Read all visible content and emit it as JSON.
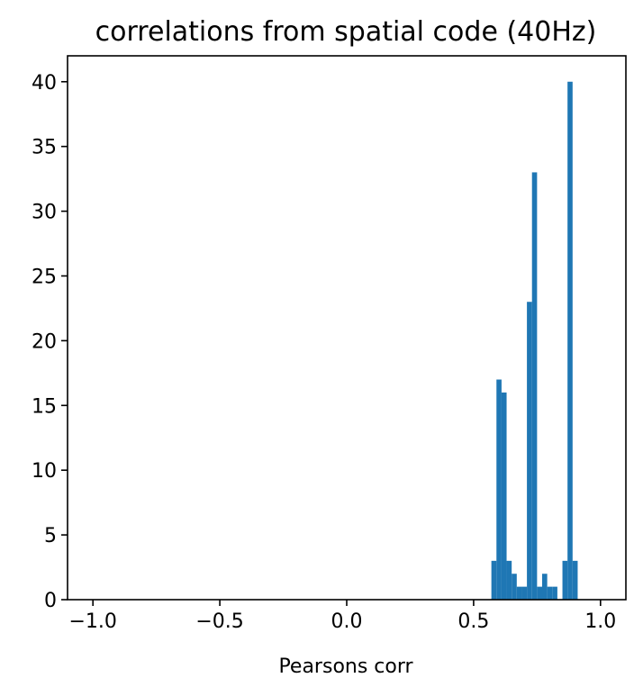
{
  "chart_data": {
    "type": "bar",
    "title": "correlations from spatial code (40Hz)",
    "xlabel": "Pearsons corr",
    "ylabel": "",
    "xlim": [
      -1.1,
      1.1
    ],
    "ylim": [
      0,
      42
    ],
    "xticks": [
      -1.0,
      -0.5,
      0.0,
      0.5,
      1.0
    ],
    "xtick_labels": [
      "−1.0",
      "−0.5",
      "0.0",
      "0.5",
      "1.0"
    ],
    "yticks": [
      0,
      5,
      10,
      15,
      20,
      25,
      30,
      35,
      40
    ],
    "ytick_labels": [
      "0",
      "5",
      "10",
      "15",
      "20",
      "25",
      "30",
      "35",
      "40"
    ],
    "grid": false,
    "bar_color": "#1f77b4",
    "bin_width": 0.02,
    "bins": [
      {
        "x0": 0.57,
        "x1": 0.59,
        "count": 3
      },
      {
        "x0": 0.59,
        "x1": 0.61,
        "count": 17
      },
      {
        "x0": 0.61,
        "x1": 0.63,
        "count": 16
      },
      {
        "x0": 0.63,
        "x1": 0.65,
        "count": 3
      },
      {
        "x0": 0.65,
        "x1": 0.67,
        "count": 2
      },
      {
        "x0": 0.67,
        "x1": 0.69,
        "count": 1
      },
      {
        "x0": 0.69,
        "x1": 0.71,
        "count": 1
      },
      {
        "x0": 0.71,
        "x1": 0.73,
        "count": 23
      },
      {
        "x0": 0.73,
        "x1": 0.75,
        "count": 33
      },
      {
        "x0": 0.75,
        "x1": 0.77,
        "count": 1
      },
      {
        "x0": 0.77,
        "x1": 0.79,
        "count": 2
      },
      {
        "x0": 0.79,
        "x1": 0.81,
        "count": 1
      },
      {
        "x0": 0.81,
        "x1": 0.83,
        "count": 1
      },
      {
        "x0": 0.83,
        "x1": 0.85,
        "count": 0
      },
      {
        "x0": 0.85,
        "x1": 0.87,
        "count": 3
      },
      {
        "x0": 0.87,
        "x1": 0.89,
        "count": 40
      },
      {
        "x0": 0.89,
        "x1": 0.91,
        "count": 3
      }
    ]
  }
}
